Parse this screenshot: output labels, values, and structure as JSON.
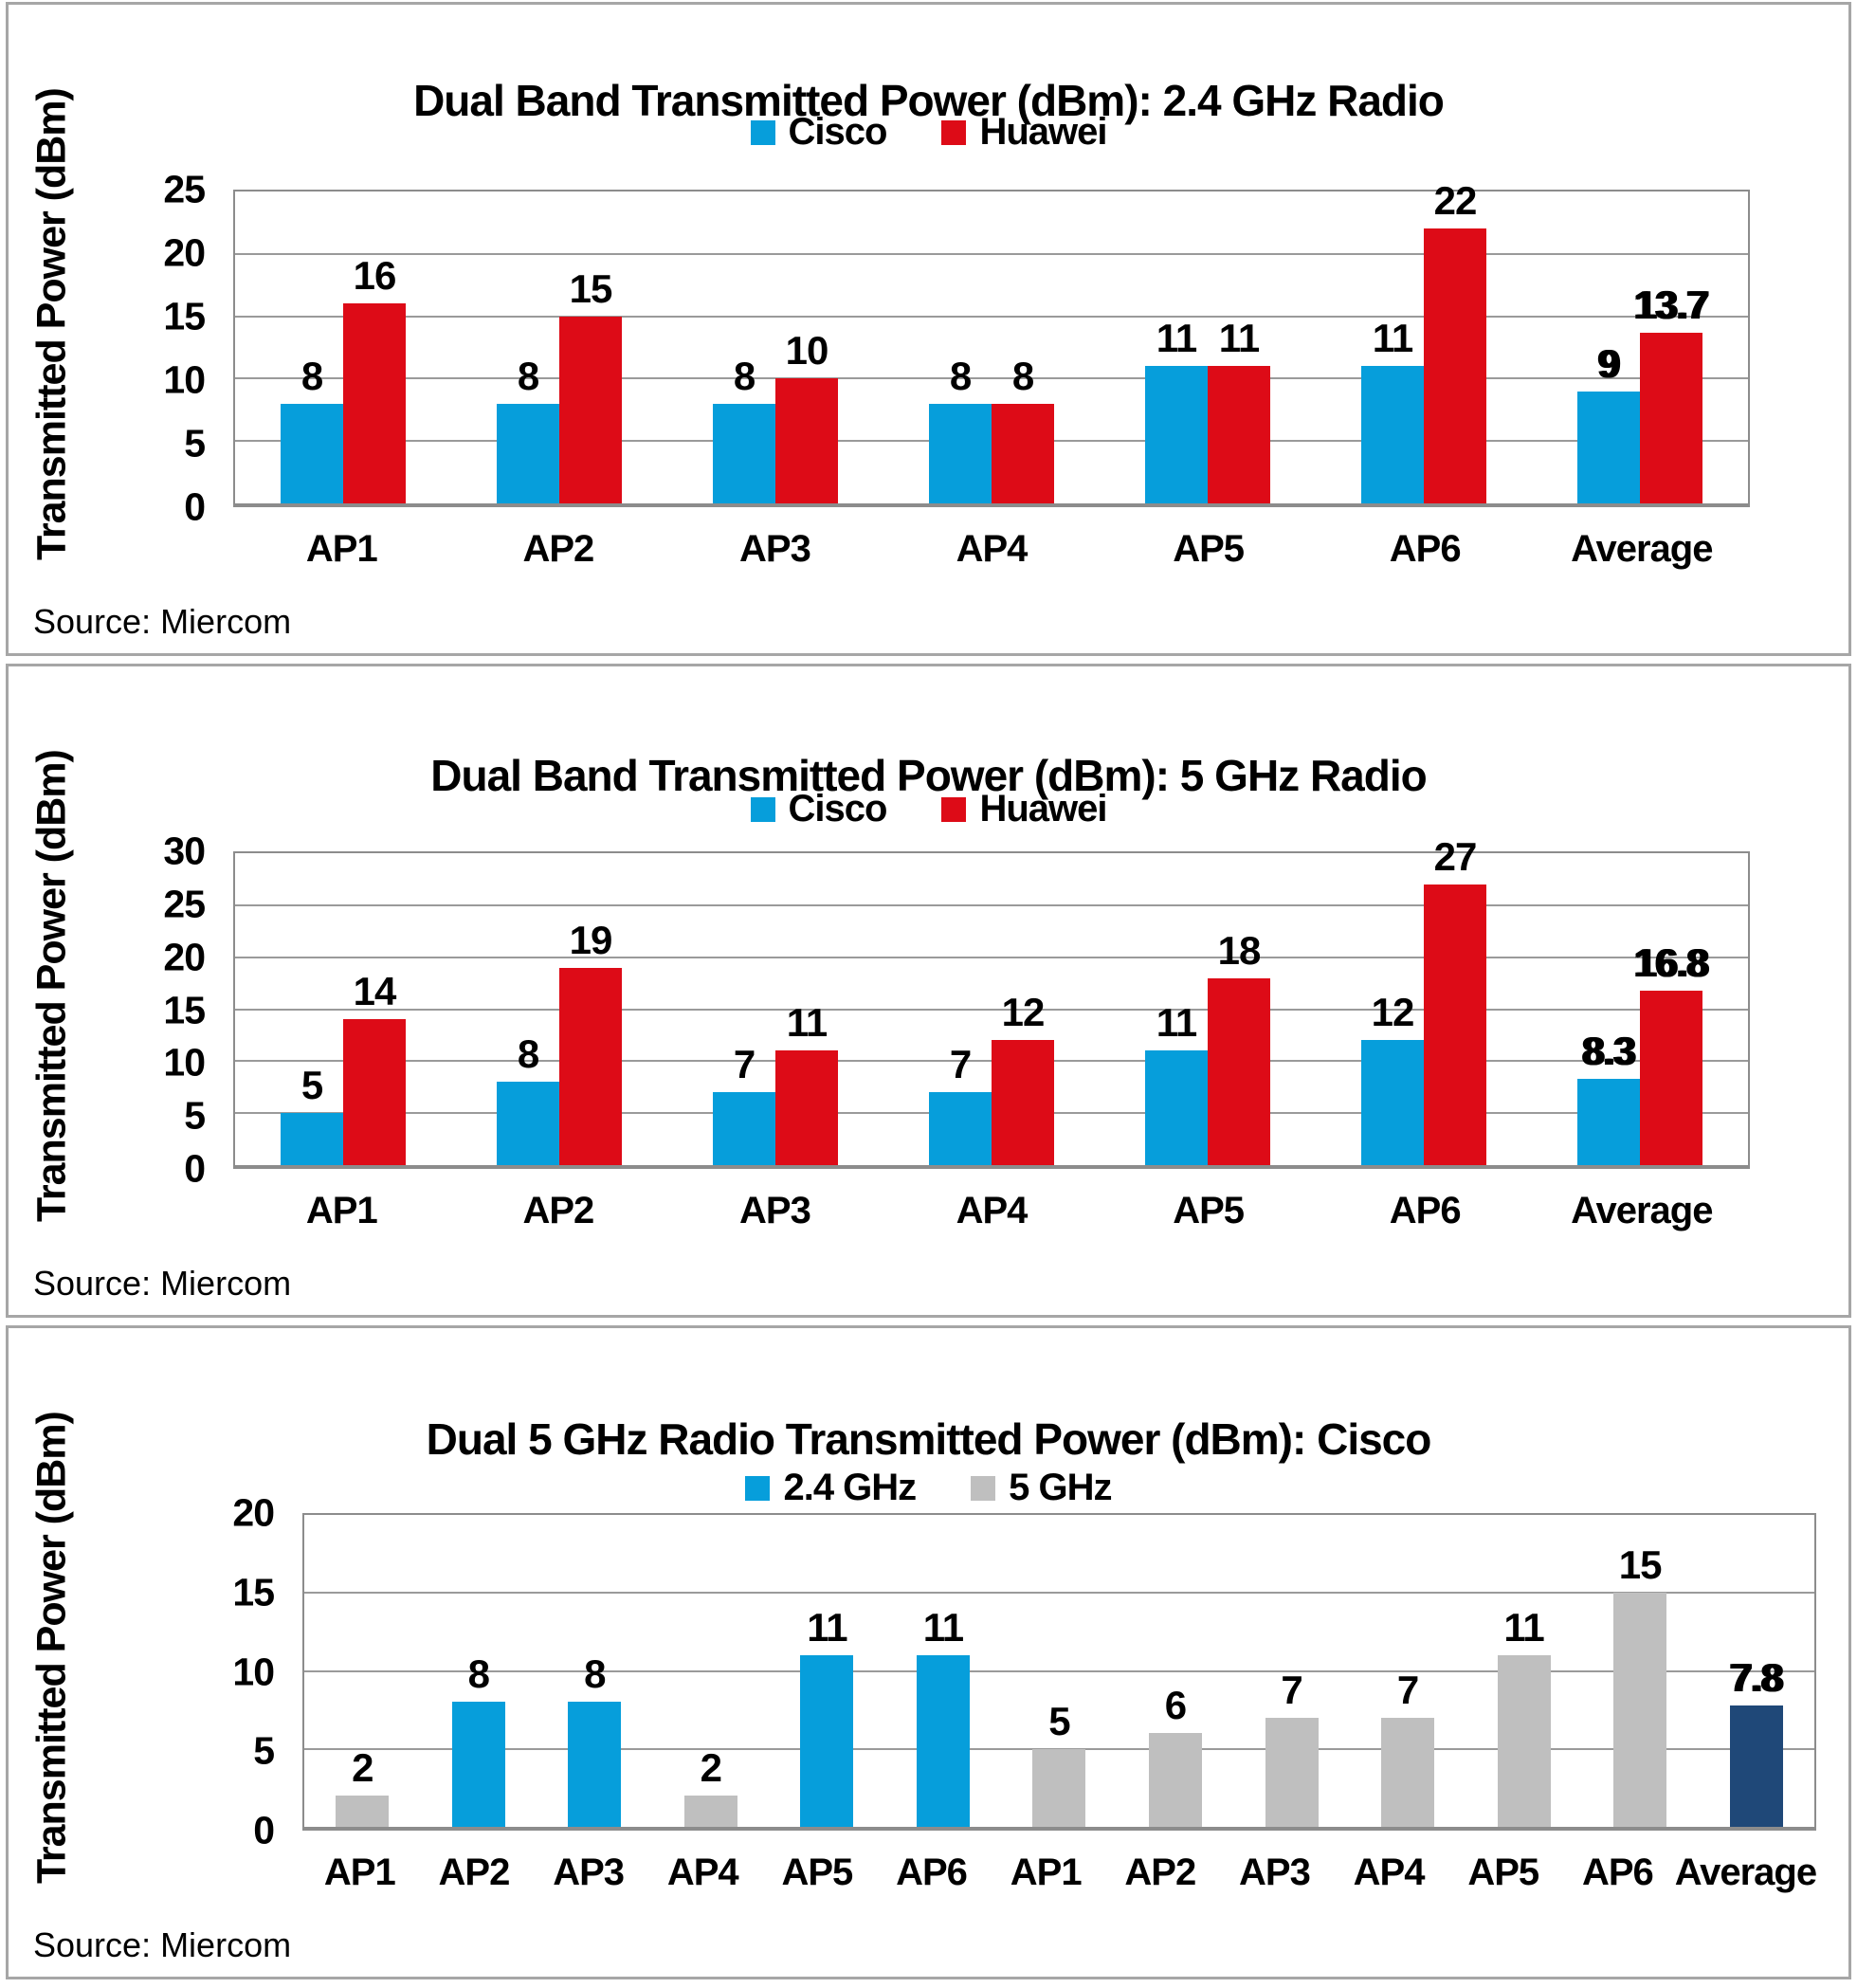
{
  "accent_colors": {
    "cisco_blue": "#069EDB",
    "huawei_red": "#DD0B17",
    "gray_bar": "#BFBFBF",
    "navy_bar": "#1F4878"
  },
  "chart_data": [
    {
      "type": "bar",
      "title": "Dual Band Transmitted Power (dBm): 2.4 GHz Radio",
      "ylabel": "Transmitted Power (dBm)",
      "source_note": "Source: Miercom",
      "categories": [
        "AP1",
        "AP2",
        "AP3",
        "AP4",
        "AP5",
        "AP6",
        "Average"
      ],
      "series": [
        {
          "name": "Cisco",
          "color": "#069EDB",
          "values": [
            8,
            8,
            8,
            8,
            11,
            11,
            9
          ]
        },
        {
          "name": "Huawei",
          "color": "#DD0B17",
          "values": [
            16,
            15,
            10,
            8,
            11,
            22,
            13.7
          ]
        }
      ],
      "legend": [
        {
          "label": "Cisco",
          "color": "#069EDB"
        },
        {
          "label": "Huawei",
          "color": "#DD0B17"
        }
      ],
      "ylim": [
        0,
        25
      ],
      "ytick_step": 5,
      "grid": "horizontal",
      "legend_position": "top",
      "bold_last_group": true
    },
    {
      "type": "bar",
      "title": "Dual Band Transmitted Power (dBm): 5 GHz Radio",
      "ylabel": "Transmitted Power (dBm)",
      "source_note": "Source: Miercom",
      "categories": [
        "AP1",
        "AP2",
        "AP3",
        "AP4",
        "AP5",
        "AP6",
        "Average"
      ],
      "series": [
        {
          "name": "Cisco",
          "color": "#069EDB",
          "values": [
            5,
            8,
            7,
            7,
            11,
            12,
            8.3
          ]
        },
        {
          "name": "Huawei",
          "color": "#DD0B17",
          "values": [
            14,
            19,
            11,
            12,
            18,
            27,
            16.8
          ]
        }
      ],
      "legend": [
        {
          "label": "Cisco",
          "color": "#069EDB"
        },
        {
          "label": "Huawei",
          "color": "#DD0B17"
        }
      ],
      "ylim": [
        0,
        30
      ],
      "ytick_step": 5,
      "grid": "horizontal",
      "legend_position": "top",
      "bold_last_group": true
    },
    {
      "type": "bar",
      "title": "Dual 5 GHz Radio Transmitted Power (dBm): Cisco",
      "ylabel": "Transmitted Power (dBm)",
      "source_note": "Source: Miercom",
      "categories": [
        "AP1",
        "AP2",
        "AP3",
        "AP4",
        "AP5",
        "AP6",
        "AP1",
        "AP2",
        "AP3",
        "AP4",
        "AP5",
        "AP6",
        "Average"
      ],
      "series": [
        {
          "name": "Transmitted Power",
          "values": [
            2,
            8,
            8,
            2,
            11,
            11,
            5,
            6,
            7,
            7,
            11,
            15,
            7.8
          ],
          "colors": [
            "#BFBFBF",
            "#069EDB",
            "#069EDB",
            "#BFBFBF",
            "#069EDB",
            "#069EDB",
            "#BFBFBF",
            "#BFBFBF",
            "#BFBFBF",
            "#BFBFBF",
            "#BFBFBF",
            "#BFBFBF",
            "#1F4878"
          ]
        }
      ],
      "legend": [
        {
          "label": "2.4 GHz",
          "color": "#069EDB"
        },
        {
          "label": "5 GHz",
          "color": "#BFBFBF"
        }
      ],
      "ylim": [
        0,
        20
      ],
      "ytick_step": 5,
      "grid": "horizontal",
      "legend_position": "top",
      "bold_last_group": true
    }
  ]
}
